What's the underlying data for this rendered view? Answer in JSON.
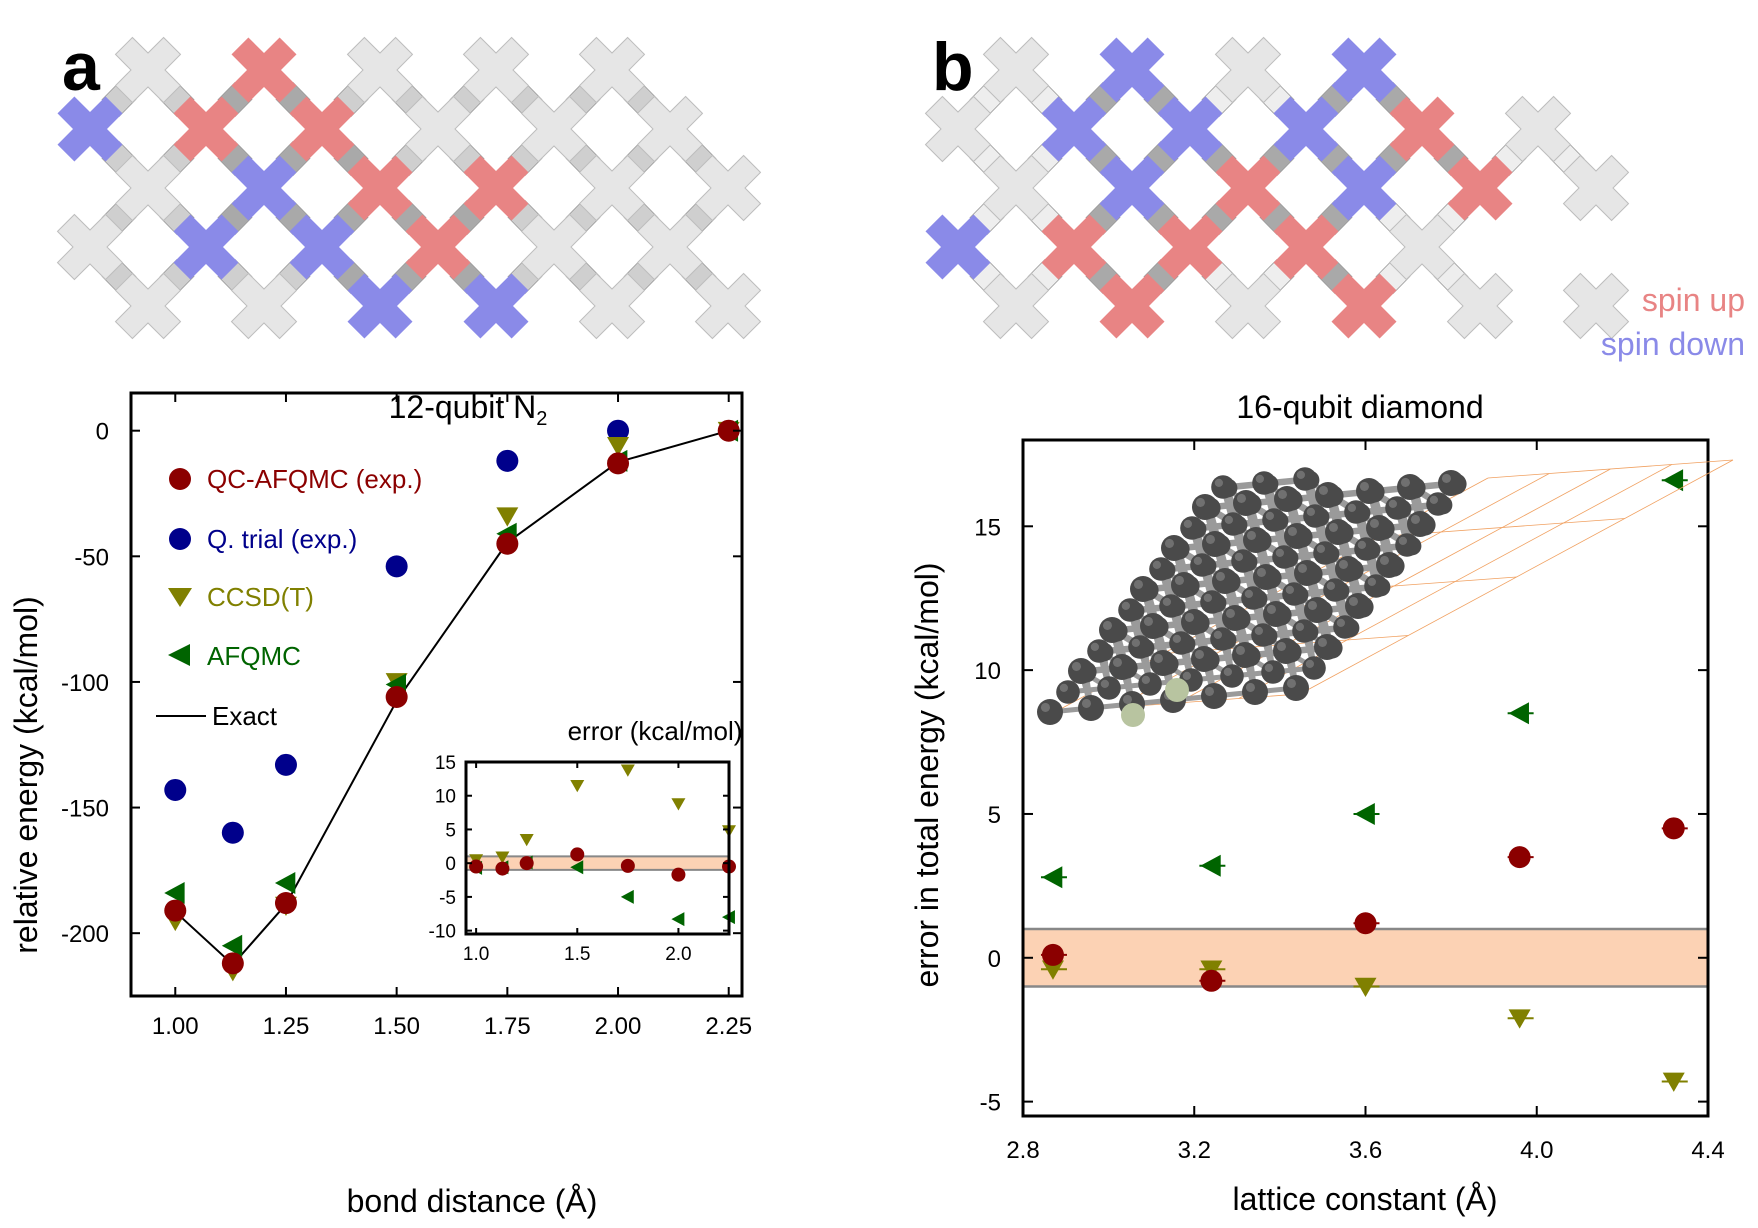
{
  "panels": {
    "a": {
      "letter": "a"
    },
    "b": {
      "letter": "b"
    }
  },
  "spin_legend": {
    "up": "spin up",
    "down": "spin down"
  },
  "colors": {
    "up": "#e88484",
    "down": "#8a8ae8",
    "inactive": "#e6e6e6",
    "coupler": "#a9a9a9",
    "coupler_light": "#eeeeee",
    "qc": "#8b0000",
    "qtrial": "#00008b",
    "ccsdt": "#808000",
    "afqmc": "#006400",
    "band": "#fcd2b4"
  },
  "chip_a": {
    "rows": [
      [
        "i",
        "u",
        "i",
        "i",
        "i"
      ],
      [
        "d",
        "u",
        "u",
        "i",
        "i",
        "i"
      ],
      [
        "i",
        "d",
        "u",
        "u",
        "i",
        "i"
      ],
      [
        "i",
        "d",
        "d",
        "u",
        "i",
        "i"
      ],
      [
        "i",
        "i",
        "d",
        "d",
        "i",
        "i"
      ]
    ]
  },
  "chip_b": {
    "rows": [
      [
        "i",
        "d",
        "i",
        "d"
      ],
      [
        "i",
        "d",
        "d",
        "d",
        "u",
        "i"
      ],
      [
        "i",
        "d",
        "u",
        "d",
        "u",
        "i"
      ],
      [
        "d",
        "u",
        "u",
        "u",
        "i"
      ],
      [
        "i",
        "u",
        "i",
        "u",
        "i",
        "i"
      ]
    ]
  },
  "chart_data": [
    {
      "type": "scatter",
      "title": "12-qubit N",
      "title_sub": "2",
      "xlabel": "bond distance (Å)",
      "ylabel": "relative energy (kcal/mol)",
      "xlim": [
        0.9,
        2.28
      ],
      "ylim": [
        -225,
        15
      ],
      "xticks": [
        "1.00",
        "1.25",
        "1.50",
        "1.75",
        "2.00",
        "2.25"
      ],
      "xtick_values": [
        1.0,
        1.25,
        1.5,
        1.75,
        2.0,
        2.25
      ],
      "yticks": [
        "0",
        "-50",
        "-100",
        "-150",
        "-200"
      ],
      "ytick_values": [
        0,
        -50,
        -100,
        -150,
        -200
      ],
      "legend": {
        "qc": "QC-AFQMC (exp.)",
        "qtrial": "Q. trial (exp.)",
        "ccsdt": "CCSD(T)",
        "afqmc": "AFQMC",
        "exact": "Exact"
      },
      "series": [
        {
          "name": "QC-AFQMC (exp.)",
          "key": "qc",
          "marker": "circle",
          "x": [
            1.0,
            1.13,
            1.25,
            1.5,
            1.75,
            2.0,
            2.25
          ],
          "y": [
            -191,
            -212,
            -188,
            -106,
            -45,
            -13,
            0
          ]
        },
        {
          "name": "Q. trial (exp.)",
          "key": "qtrial",
          "marker": "circle",
          "x": [
            1.0,
            1.13,
            1.25,
            1.5,
            1.75,
            2.0
          ],
          "y": [
            -143,
            -160,
            -133,
            -54,
            -12,
            0
          ]
        },
        {
          "name": "CCSD(T)",
          "key": "ccsdt",
          "marker": "triangle-down",
          "x": [
            1.0,
            1.13,
            1.25,
            1.5,
            1.75,
            2.0,
            2.25
          ],
          "y": [
            -195,
            -215,
            -189,
            -100,
            -34,
            -6,
            0
          ]
        },
        {
          "name": "AFQMC",
          "key": "afqmc",
          "marker": "triangle-left",
          "x": [
            1.0,
            1.13,
            1.25,
            1.5,
            1.75,
            2.0,
            2.25
          ],
          "y": [
            -184,
            -205,
            -180,
            -101,
            -41,
            -12,
            0
          ]
        },
        {
          "name": "Exact",
          "key": "exact",
          "marker": "line",
          "x": [
            1.0,
            1.13,
            1.25,
            1.5,
            1.75,
            2.0,
            2.25
          ],
          "y": [
            -191.5,
            -212.5,
            -188.5,
            -107.5,
            -44.5,
            -12.5,
            0
          ]
        }
      ],
      "inset": {
        "title": "error (kcal/mol)",
        "xlim": [
          0.95,
          2.25
        ],
        "ylim": [
          -10.5,
          15
        ],
        "xticks": [
          "1.0",
          "1.5",
          "2.0"
        ],
        "xtick_values": [
          1.0,
          1.5,
          2.0
        ],
        "yticks": [
          "15",
          "10",
          "5",
          "0",
          "-5",
          "-10"
        ],
        "ytick_values": [
          15,
          10,
          5,
          0,
          -5,
          -10
        ],
        "band": [
          -1,
          1
        ],
        "series": [
          {
            "key": "qc",
            "marker": "circle",
            "x": [
              1.0,
              1.13,
              1.25,
              1.5,
              1.75,
              2.0,
              2.25
            ],
            "y": [
              -0.5,
              -0.8,
              0.0,
              1.3,
              -0.4,
              -1.7,
              -0.5
            ]
          },
          {
            "key": "ccsdt",
            "marker": "triangle-down",
            "x": [
              1.0,
              1.13,
              1.25,
              1.5,
              1.75,
              2.0,
              2.25
            ],
            "y": [
              0.5,
              0.9,
              3.5,
              11.5,
              13.8,
              8.8,
              4.8
            ]
          },
          {
            "key": "afqmc",
            "marker": "triangle-left",
            "x": [
              1.0,
              1.13,
              1.25,
              1.5,
              1.75,
              2.0,
              2.25
            ],
            "y": [
              -0.7,
              -0.6,
              0.1,
              -0.6,
              -5.0,
              -8.3,
              -8.0
            ]
          }
        ]
      }
    },
    {
      "type": "scatter",
      "title": "16-qubit diamond",
      "xlabel": "lattice constant (Å)",
      "ylabel": "error in total energy (kcal/mol)",
      "xlim": [
        2.8,
        4.4
      ],
      "ylim": [
        -5.5,
        18
      ],
      "xticks": [
        "2.8",
        "3.2",
        "3.6",
        "4.0",
        "4.4"
      ],
      "xtick_values": [
        2.8,
        3.2,
        3.6,
        4.0,
        4.4
      ],
      "yticks": [
        "15",
        "10",
        "5",
        "0",
        "-5"
      ],
      "ytick_values": [
        15,
        10,
        5,
        0,
        -5
      ],
      "band": [
        -1,
        1
      ],
      "series": [
        {
          "key": "qc",
          "marker": "circle",
          "x": [
            2.87,
            3.24,
            3.6,
            3.96,
            4.32
          ],
          "y": [
            0.1,
            -0.8,
            1.2,
            3.5,
            4.5
          ]
        },
        {
          "key": "ccsdt",
          "marker": "triangle-down",
          "x": [
            2.87,
            3.24,
            3.6,
            3.96,
            4.32
          ],
          "y": [
            -0.4,
            -0.4,
            -1.0,
            -2.1,
            -4.3
          ]
        },
        {
          "key": "afqmc",
          "marker": "triangle-left",
          "x": [
            2.87,
            3.24,
            3.6,
            3.96,
            4.32
          ],
          "y": [
            2.8,
            3.2,
            5.0,
            8.5,
            16.6
          ]
        }
      ]
    }
  ]
}
